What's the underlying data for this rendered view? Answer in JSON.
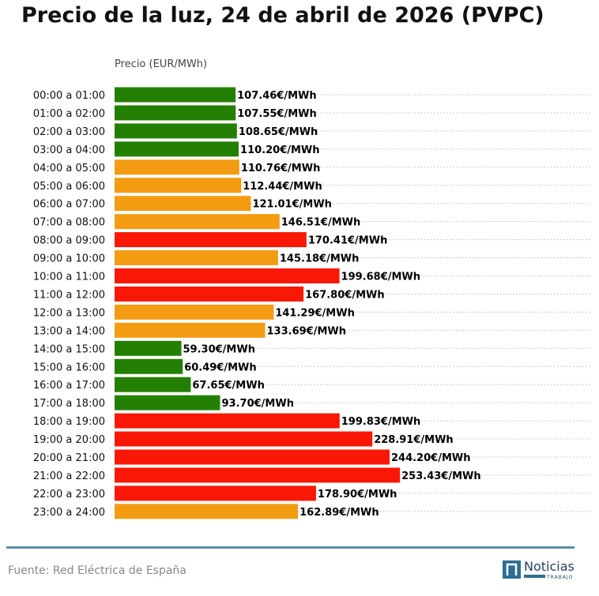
{
  "chart_data": {
    "type": "bar",
    "orientation": "horizontal",
    "title": "Precio de la luz, 24 de abril de 2026 (PVPC)",
    "xlabel": "Precio (EUR/MWh)",
    "ylabel": "",
    "unit_suffix": "€/MWh",
    "xlim": [
      0,
      330
    ],
    "grid": "horizontal dotted",
    "legend": "none",
    "categories": [
      "00:00 a 01:00",
      "01:00 a 02:00",
      "02:00 a 03:00",
      "03:00 a 04:00",
      "04:00 a 05:00",
      "05:00 a 06:00",
      "06:00 a 07:00",
      "07:00 a 08:00",
      "08:00 a 09:00",
      "09:00 a 10:00",
      "10:00 a 11:00",
      "11:00 a 12:00",
      "12:00 a 13:00",
      "13:00 a 14:00",
      "14:00 a 15:00",
      "15:00 a 16:00",
      "16:00 a 17:00",
      "17:00 a 18:00",
      "18:00 a 19:00",
      "19:00 a 20:00",
      "20:00 a 21:00",
      "21:00 a 22:00",
      "22:00 a 23:00",
      "23:00 a 24:00"
    ],
    "values": [
      107.46,
      107.55,
      108.65,
      110.2,
      110.76,
      112.44,
      121.01,
      146.51,
      170.41,
      145.18,
      199.68,
      167.8,
      141.29,
      133.69,
      59.3,
      60.49,
      67.65,
      93.7,
      199.83,
      228.91,
      244.2,
      253.43,
      178.9,
      162.89
    ],
    "levels": [
      "low",
      "low",
      "low",
      "low",
      "mid",
      "mid",
      "mid",
      "mid",
      "high",
      "mid",
      "high",
      "high",
      "mid",
      "mid",
      "low",
      "low",
      "low",
      "low",
      "high",
      "high",
      "high",
      "high",
      "high",
      "mid"
    ],
    "colors": {
      "low": "#237f01",
      "mid": "#f39c12",
      "high": "#f91705"
    }
  },
  "footer": {
    "source": "Fuente: Red Eléctrica de España",
    "brand_name": "Noticias",
    "brand_sub": "TRABAJO"
  }
}
